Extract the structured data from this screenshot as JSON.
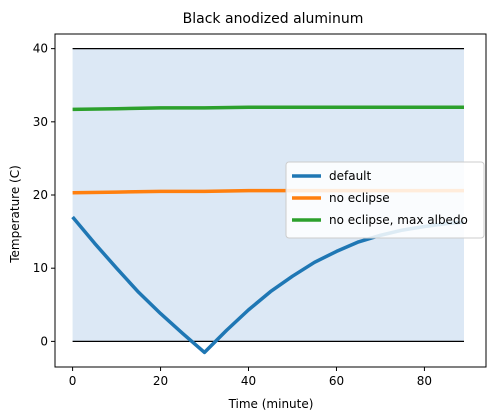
{
  "chart_data": {
    "type": "line",
    "title": "Black anodized aluminum",
    "xlabel": "Time (minute)",
    "ylabel": "Temperature (C)",
    "xlim": [
      -4,
      94
    ],
    "ylim": [
      -3.5,
      42
    ],
    "xticks": [
      0,
      20,
      40,
      60,
      80
    ],
    "yticks": [
      0,
      10,
      20,
      30,
      40
    ],
    "grid": false,
    "legend_position": "center-right",
    "shaded_region": {
      "x": [
        0,
        89
      ],
      "y": [
        0,
        40
      ],
      "color": "#dce8f5"
    },
    "reference_lines": [
      {
        "y": 40,
        "x": [
          0,
          89
        ],
        "color": "#000000"
      },
      {
        "y": 0,
        "x": [
          0,
          89
        ],
        "color": "#000000"
      }
    ],
    "series": [
      {
        "name": "default",
        "color": "#1f77b4",
        "x": [
          0,
          5,
          10,
          15,
          20,
          25,
          30,
          35,
          40,
          45,
          50,
          55,
          60,
          65,
          70,
          75,
          80,
          85,
          89
        ],
        "values": [
          17.0,
          13.4,
          10.0,
          6.7,
          3.8,
          1.1,
          -1.5,
          1.5,
          4.3,
          6.8,
          8.9,
          10.8,
          12.3,
          13.6,
          14.5,
          15.2,
          15.7,
          16.1,
          16.3
        ]
      },
      {
        "name": "no eclipse",
        "color": "#ff7f0e",
        "x": [
          0,
          10,
          20,
          30,
          40,
          50,
          60,
          70,
          80,
          89
        ],
        "values": [
          20.3,
          20.4,
          20.5,
          20.5,
          20.6,
          20.6,
          20.6,
          20.6,
          20.6,
          20.6
        ]
      },
      {
        "name": "no eclipse, max albedo",
        "color": "#2ca02c",
        "x": [
          0,
          10,
          20,
          30,
          40,
          50,
          60,
          70,
          80,
          89
        ],
        "values": [
          31.7,
          31.8,
          31.9,
          31.9,
          32.0,
          32.0,
          32.0,
          32.0,
          32.0,
          32.0
        ]
      }
    ]
  }
}
